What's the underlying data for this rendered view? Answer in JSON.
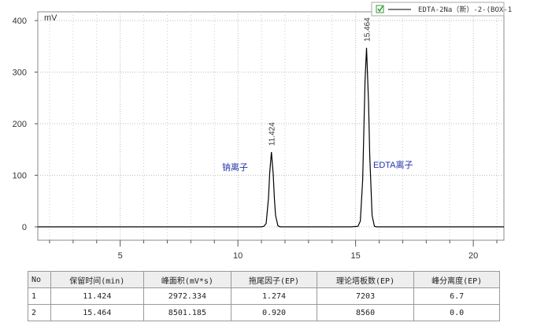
{
  "chart_data": {
    "type": "line",
    "y_unit": "mV",
    "xlim": [
      1.5,
      21.3
    ],
    "ylim": [
      -26,
      417
    ],
    "xticks": [
      5,
      10,
      15,
      20
    ],
    "yticks": [
      0,
      100,
      200,
      300,
      400
    ],
    "x_minor_ticks": [
      2,
      3,
      4,
      6,
      7,
      8,
      9,
      11,
      12,
      13,
      14,
      16,
      17,
      18,
      19,
      21
    ],
    "grid": true,
    "color": "#000000",
    "x": [
      1.5,
      5,
      10,
      11.0,
      11.1,
      11.2,
      11.3,
      11.35,
      11.424,
      11.5,
      11.55,
      11.6,
      11.7,
      11.8,
      12,
      14.8,
      15.1,
      15.2,
      15.3,
      15.4,
      15.464,
      15.55,
      15.6,
      15.7,
      15.8,
      15.9,
      16.1,
      18,
      21.3
    ],
    "values": [
      0,
      0,
      0,
      0,
      1,
      6.5,
      56,
      104,
      145,
      102,
      55,
      22,
      2,
      0,
      0,
      0,
      1,
      11,
      91,
      283,
      347,
      240,
      138,
      22,
      1,
      0,
      0,
      0,
      0
    ],
    "peak_times": [
      11.424,
      15.464
    ],
    "annotations": [
      "钠离子",
      "EDTA离子"
    ],
    "legend": "EDTA-2Na（新）-2-(BOX-1"
  },
  "table": {
    "columns": [
      "No",
      "保留时间(min)",
      "峰面积(mV*s)",
      "拖尾因子(EP)",
      "理论塔板数(EP)",
      "峰分离度(EP)"
    ],
    "rows": [
      [
        "1",
        "11.424",
        "2972.334",
        "1.274",
        "7203",
        "6.7"
      ],
      [
        "2",
        "15.464",
        "8501.185",
        "0.920",
        "8560",
        "0.0"
      ]
    ]
  }
}
